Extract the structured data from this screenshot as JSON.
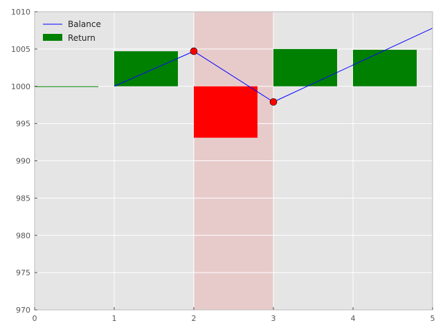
{
  "chart_data": {
    "type": "bar",
    "title": "",
    "xlabel": "",
    "ylabel": "",
    "xlim": [
      0,
      5
    ],
    "ylim": [
      970,
      1010
    ],
    "x_ticks": [
      0,
      1,
      2,
      3,
      4,
      5
    ],
    "y_ticks": [
      970,
      975,
      980,
      985,
      990,
      995,
      1000,
      1005,
      1010
    ],
    "grid": true,
    "legend_position": "top-left",
    "highlight_span": {
      "x_start": 2,
      "x_end": 3,
      "color": "#f08080"
    },
    "baseline": 1000,
    "series": [
      {
        "name": "Balance",
        "kind": "line",
        "color": "#0000ff",
        "x": [
          1,
          2,
          3,
          5
        ],
        "y": [
          1000,
          1004.7,
          997.9,
          1007.8
        ],
        "markers": {
          "x": [
            2,
            3
          ],
          "y": [
            1004.7,
            997.9
          ],
          "color": "#ff0000"
        }
      },
      {
        "name": "Return",
        "kind": "bar",
        "positive_color": "#008000",
        "negative_color": "#ff0000",
        "bar_width": 0.8,
        "x_start": [
          0,
          1,
          2,
          3,
          4
        ],
        "y": [
          1000,
          1004.7,
          993.1,
          1005.0,
          1004.9
        ]
      }
    ]
  }
}
